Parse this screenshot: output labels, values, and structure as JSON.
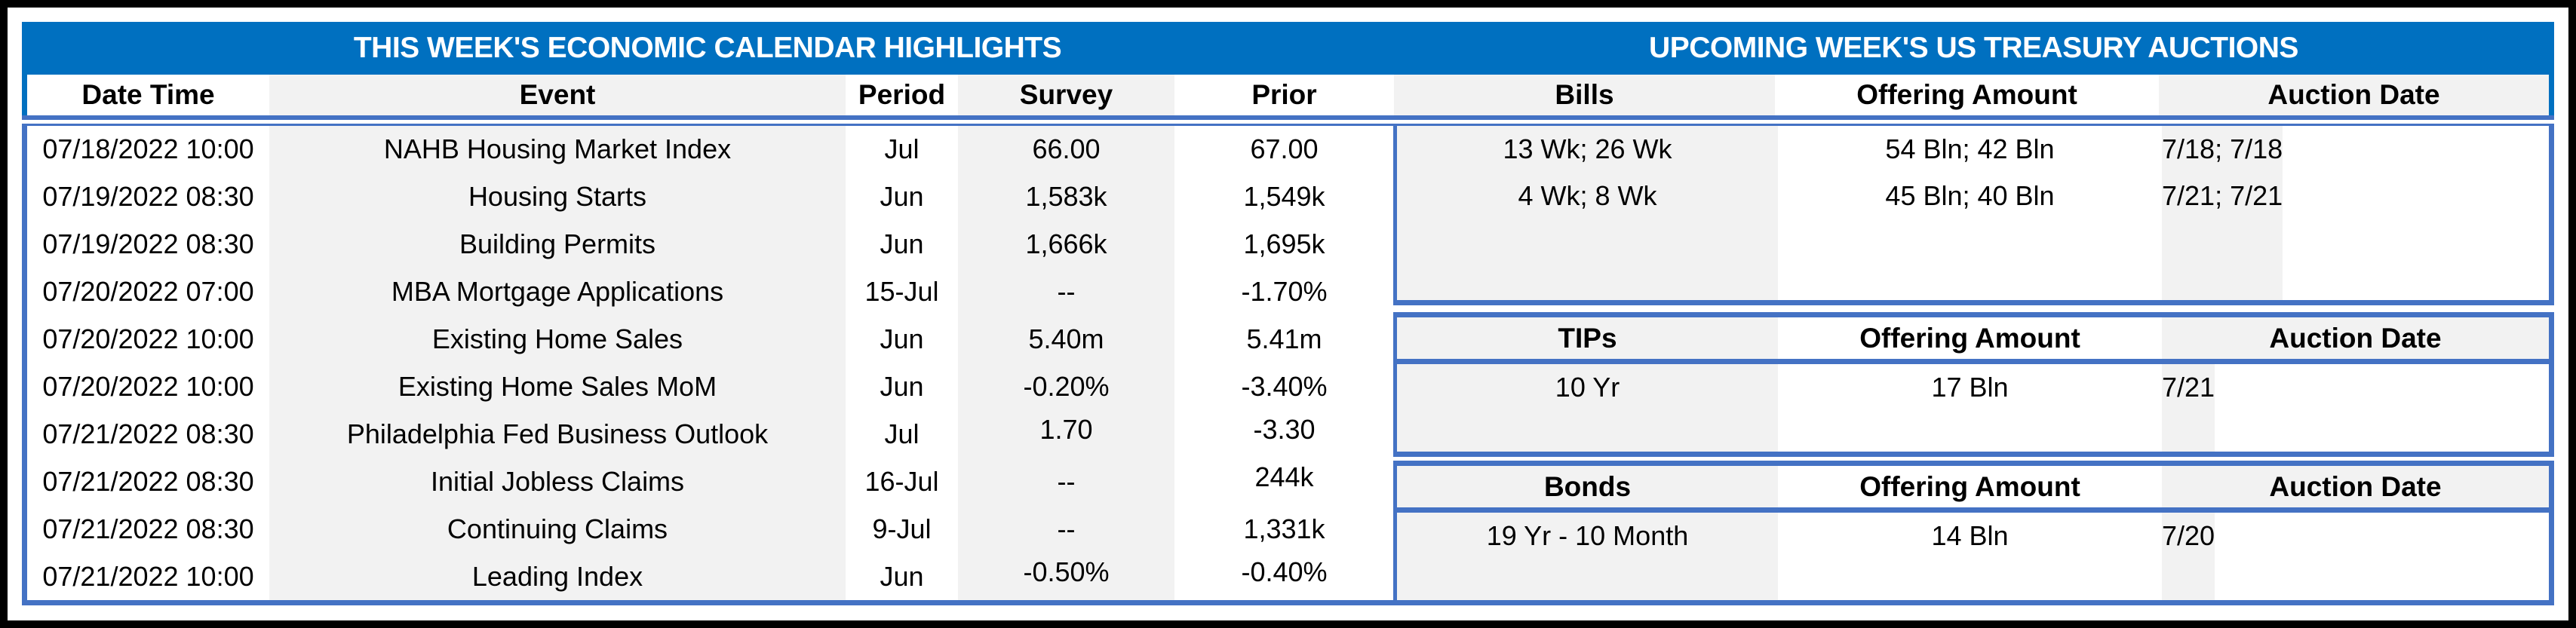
{
  "left_panel": {
    "title": "THIS WEEK'S ECONOMIC CALENDAR HIGHLIGHTS",
    "columns": [
      "Date Time",
      "Event",
      "Period",
      "Survey",
      "Prior"
    ],
    "rows": [
      [
        "07/18/2022 10:00",
        "NAHB Housing Market Index",
        "Jul",
        "66.00",
        "67.00"
      ],
      [
        "07/19/2022 08:30",
        "Housing Starts",
        "Jun",
        "1,583k",
        "1,549k"
      ],
      [
        "07/19/2022 08:30",
        "Building Permits",
        "Jun",
        "1,666k",
        "1,695k"
      ],
      [
        "07/20/2022 07:00",
        "MBA Mortgage Applications",
        "15-Jul",
        "--",
        "-1.70%"
      ],
      [
        "07/20/2022 10:00",
        "Existing Home Sales",
        "Jun",
        "5.40m",
        "5.41m"
      ],
      [
        "07/20/2022 10:00",
        "Existing Home Sales MoM",
        "Jun",
        "-0.20%",
        "-3.40%"
      ],
      [
        "07/21/2022 08:30",
        "Philadelphia Fed Business Outlook",
        "Jul",
        "1.70",
        "-3.30"
      ],
      [
        "07/21/2022 08:30",
        "Initial Jobless Claims",
        "16-Jul",
        "--",
        "244k"
      ],
      [
        "07/21/2022 08:30",
        "Continuing Claims",
        "9-Jul",
        "--",
        "1,331k"
      ],
      [
        "07/21/2022 10:00",
        "Leading Index",
        "Jun",
        "-0.50%",
        "-0.40%"
      ]
    ]
  },
  "right_panel": {
    "title": "UPCOMING WEEK'S US TREASURY AUCTIONS",
    "sections": [
      {
        "columns": [
          "Bills",
          "Offering Amount",
          "Auction Date"
        ],
        "rows": [
          [
            "13 Wk; 26 Wk",
            "54 Bln; 42 Bln",
            "7/18; 7/18"
          ],
          [
            "4 Wk; 8 Wk",
            "45 Bln; 40 Bln",
            "7/21; 7/21"
          ]
        ]
      },
      {
        "columns": [
          "TIPs",
          "Offering Amount",
          "Auction Date"
        ],
        "rows": [
          [
            "10 Yr",
            "17 Bln",
            "7/21"
          ]
        ]
      },
      {
        "columns": [
          "Bonds",
          "Offering Amount",
          "Auction Date"
        ],
        "rows": [
          [
            "19 Yr - 10 Month",
            "14 Bln",
            "7/20"
          ]
        ]
      }
    ]
  },
  "colors": {
    "banner_blue": "#0070C0",
    "border_blue": "#4472C4",
    "stripe_gray": "#F2F2F2",
    "frame_black": "#000000"
  }
}
